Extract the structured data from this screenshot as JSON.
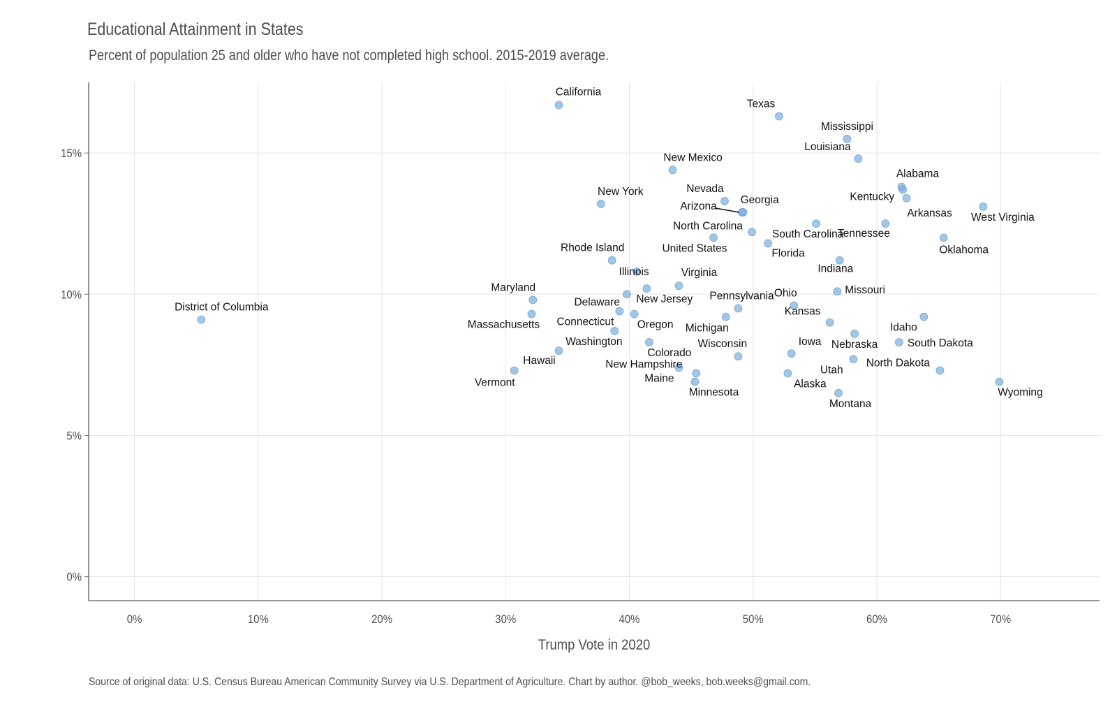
{
  "chart_data": {
    "type": "scatter",
    "title": "Educational Attainment in States",
    "subtitle": "Percent of population 25 and older who have not completed high school. 2015-2019 average.",
    "xlabel": "Trump Vote in 2020",
    "ylabel": "",
    "caption": "Source of original data: U.S. Census Bureau American Community Survey via U.S. Department of Agriculture. Chart by author. @bob_weeks, bob.weeks@gmail.com.",
    "xlim": [
      -3.7,
      78
    ],
    "ylim": [
      -0.85,
      17.5
    ],
    "x_ticks": [
      0,
      10,
      20,
      30,
      40,
      50,
      60,
      70
    ],
    "x_tick_labels": [
      "0%",
      "10%",
      "20%",
      "30%",
      "40%",
      "50%",
      "60%",
      "70%"
    ],
    "y_ticks": [
      0,
      5,
      10,
      15
    ],
    "y_tick_labels": [
      "0%",
      "5%",
      "10%",
      "15%"
    ],
    "grid": true,
    "point_color": "#7aaedb",
    "points": [
      {
        "name": "California",
        "x": 34.3,
        "y": 16.7
      },
      {
        "name": "Texas",
        "x": 52.1,
        "y": 16.3
      },
      {
        "name": "Mississippi",
        "x": 57.6,
        "y": 15.5
      },
      {
        "name": "Louisiana",
        "x": 58.5,
        "y": 14.8
      },
      {
        "name": "New Mexico",
        "x": 43.5,
        "y": 14.4
      },
      {
        "name": "Alabama",
        "x": 62.0,
        "y": 13.8
      },
      {
        "name": "Kentucky",
        "x": 62.1,
        "y": 13.7
      },
      {
        "name": "Arkansas",
        "x": 62.4,
        "y": 13.4
      },
      {
        "name": "Nevada",
        "x": 47.7,
        "y": 13.3
      },
      {
        "name": "New York",
        "x": 37.7,
        "y": 13.2
      },
      {
        "name": "West Virginia",
        "x": 68.6,
        "y": 13.1
      },
      {
        "name": "Georgia",
        "x": 49.2,
        "y": 12.9
      },
      {
        "name": "Arizona",
        "x": 49.1,
        "y": 12.9
      },
      {
        "name": "Tennessee",
        "x": 60.7,
        "y": 12.5
      },
      {
        "name": "South Carolina",
        "x": 55.1,
        "y": 12.5
      },
      {
        "name": "North Carolina",
        "x": 49.9,
        "y": 12.2
      },
      {
        "name": "United States",
        "x": 46.8,
        "y": 12.0
      },
      {
        "name": "Oklahoma",
        "x": 65.4,
        "y": 12.0
      },
      {
        "name": "Florida",
        "x": 51.2,
        "y": 11.8
      },
      {
        "name": "Indiana",
        "x": 57.0,
        "y": 11.2
      },
      {
        "name": "Rhode Island",
        "x": 38.6,
        "y": 11.2
      },
      {
        "name": "Illinois",
        "x": 40.6,
        "y": 10.8
      },
      {
        "name": "Virginia",
        "x": 44.0,
        "y": 10.3
      },
      {
        "name": "New Jersey",
        "x": 41.4,
        "y": 10.2
      },
      {
        "name": "Missouri",
        "x": 56.8,
        "y": 10.1
      },
      {
        "name": "Delaware",
        "x": 39.8,
        "y": 10.0
      },
      {
        "name": "Maryland",
        "x": 32.2,
        "y": 9.8
      },
      {
        "name": "Ohio",
        "x": 53.3,
        "y": 9.6
      },
      {
        "name": "Pennsylvania",
        "x": 48.8,
        "y": 9.5
      },
      {
        "name": "Connecticut",
        "x": 39.2,
        "y": 9.4
      },
      {
        "name": "Oregon",
        "x": 40.4,
        "y": 9.3
      },
      {
        "name": "Massachusetts",
        "x": 32.1,
        "y": 9.3
      },
      {
        "name": "Idaho",
        "x": 63.8,
        "y": 9.2
      },
      {
        "name": "Michigan",
        "x": 47.8,
        "y": 9.2
      },
      {
        "name": "District of Columbia",
        "x": 5.4,
        "y": 9.1
      },
      {
        "name": "Kansas",
        "x": 56.2,
        "y": 9.0
      },
      {
        "name": "Washington",
        "x": 38.8,
        "y": 8.7
      },
      {
        "name": "Nebraska",
        "x": 58.2,
        "y": 8.6
      },
      {
        "name": "Colorado",
        "x": 41.6,
        "y": 8.3
      },
      {
        "name": "South Dakota",
        "x": 61.8,
        "y": 8.3
      },
      {
        "name": "Hawaii",
        "x": 34.3,
        "y": 8.0
      },
      {
        "name": "Iowa",
        "x": 53.1,
        "y": 7.9
      },
      {
        "name": "Wisconsin",
        "x": 48.8,
        "y": 7.8
      },
      {
        "name": "Utah",
        "x": 58.1,
        "y": 7.7
      },
      {
        "name": "Maine",
        "x": 44.0,
        "y": 7.4
      },
      {
        "name": "North Dakota",
        "x": 65.1,
        "y": 7.3
      },
      {
        "name": "Vermont",
        "x": 30.7,
        "y": 7.3
      },
      {
        "name": "New Hampshire",
        "x": 45.4,
        "y": 7.2
      },
      {
        "name": "Minnesota",
        "x": 45.3,
        "y": 6.9
      },
      {
        "name": "Wyoming",
        "x": 69.9,
        "y": 6.9
      },
      {
        "name": "Alaska",
        "x": 52.8,
        "y": 7.2
      },
      {
        "name": "Montana",
        "x": 56.9,
        "y": 6.5
      }
    ]
  }
}
